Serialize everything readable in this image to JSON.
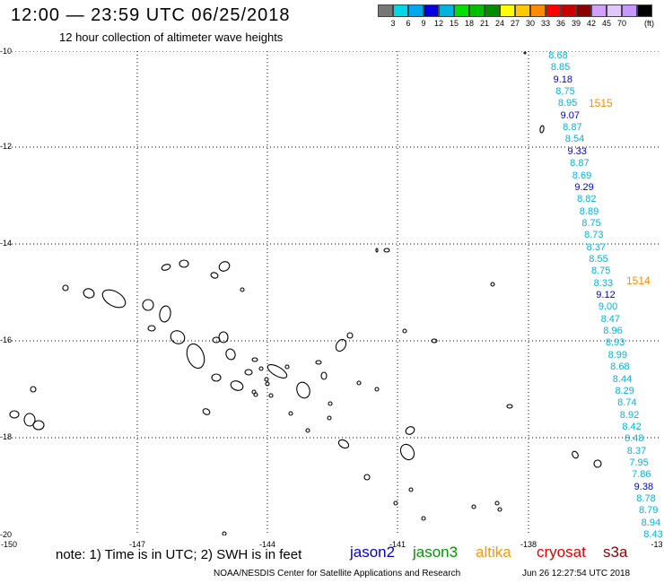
{
  "title": "12:00 — 23:59 UTC 06/25/2018",
  "subtitle": "12 hour collection of altimeter wave heights",
  "colorbar": {
    "colors": [
      "#777777",
      "#00d8e8",
      "#00a8f0",
      "#0000e0",
      "#00b4e0",
      "#00e000",
      "#00c000",
      "#008c00",
      "#ffff00",
      "#ffc800",
      "#ff8c00",
      "#ff0000",
      "#c80000",
      "#8b0000",
      "#d2a0ff",
      "#e0c8ff",
      "#c896ff",
      "#000000"
    ],
    "labels": [
      "3",
      "6",
      "9",
      "12",
      "15",
      "18",
      "21",
      "24",
      "27",
      "30",
      "33",
      "36",
      "39",
      "42",
      "45",
      "70"
    ],
    "unit": "(ft)"
  },
  "lat_labels": [
    "-10",
    "-12",
    "-14",
    "-16",
    "-18",
    "-20"
  ],
  "lon_labels": [
    "-150",
    "-147",
    "-144",
    "-141",
    "-138",
    "-13"
  ],
  "swh_values": [
    {
      "v": "8.68",
      "color": "#00b4e0"
    },
    {
      "v": "8.85",
      "color": "#00b4e0"
    },
    {
      "v": "9.18",
      "color": "#0000e0"
    },
    {
      "v": "8.75",
      "color": "#00b4e0"
    },
    {
      "v": "8.95",
      "color": "#00b4e0"
    },
    {
      "v": "9.07",
      "color": "#0000e0"
    },
    {
      "v": "8.87",
      "color": "#00b4e0"
    },
    {
      "v": "8.54",
      "color": "#00b4e0"
    },
    {
      "v": "9.33",
      "color": "#0000e0"
    },
    {
      "v": "8.87",
      "color": "#00b4e0"
    },
    {
      "v": "8.69",
      "color": "#00b4e0"
    },
    {
      "v": "9.29",
      "color": "#0000e0"
    },
    {
      "v": "8.82",
      "color": "#00b4e0"
    },
    {
      "v": "8.89",
      "color": "#00b4e0"
    },
    {
      "v": "8.75",
      "color": "#00b4e0"
    },
    {
      "v": "8.73",
      "color": "#00b4e0"
    },
    {
      "v": "8.37",
      "color": "#00b4e0"
    },
    {
      "v": "8.55",
      "color": "#00b4e0"
    },
    {
      "v": "8.75",
      "color": "#00b4e0"
    },
    {
      "v": "8.33",
      "color": "#00b4e0"
    },
    {
      "v": "9.12",
      "color": "#0000e0"
    },
    {
      "v": "9.00",
      "color": "#00b4e0"
    },
    {
      "v": "8.47",
      "color": "#00b4e0"
    },
    {
      "v": "8.96",
      "color": "#00b4e0"
    },
    {
      "v": "8.93",
      "color": "#00b4e0"
    },
    {
      "v": "8.99",
      "color": "#00b4e0"
    },
    {
      "v": "8.68",
      "color": "#00b4e0"
    },
    {
      "v": "8.44",
      "color": "#00b4e0"
    },
    {
      "v": "8.29",
      "color": "#00b4e0"
    },
    {
      "v": "8.74",
      "color": "#00b4e0"
    },
    {
      "v": "8.92",
      "color": "#00b4e0"
    },
    {
      "v": "8.42",
      "color": "#00b4e0"
    },
    {
      "v": "8.48",
      "color": "#00b4e0"
    },
    {
      "v": "8.37",
      "color": "#00b4e0"
    },
    {
      "v": "7.95",
      "color": "#00b4e0"
    },
    {
      "v": "7.86",
      "color": "#00b4e0"
    },
    {
      "v": "9.38",
      "color": "#0000e0"
    },
    {
      "v": "8.78",
      "color": "#00b4e0"
    },
    {
      "v": "8.79",
      "color": "#00b4e0"
    },
    {
      "v": "8.94",
      "color": "#00b4e0"
    },
    {
      "v": "8.43",
      "color": "#00b4e0"
    }
  ],
  "pass_labels": [
    "1515",
    "1514"
  ],
  "note": "note: 1) Time is in UTC; 2) SWH is in feet",
  "satellites": [
    {
      "name": "jason2",
      "color": "#0000cd"
    },
    {
      "name": "jason3",
      "color": "#009600"
    },
    {
      "name": "altika",
      "color": "#ff9600"
    },
    {
      "name": "cryosat",
      "color": "#e00000"
    },
    {
      "name": "s3a",
      "color": "#8b0000"
    }
  ],
  "credit": "NOAA/NESDIS Center for Satellite Applications and Research",
  "timestamp": "Jun 26 12:27:54 UTC 2018"
}
